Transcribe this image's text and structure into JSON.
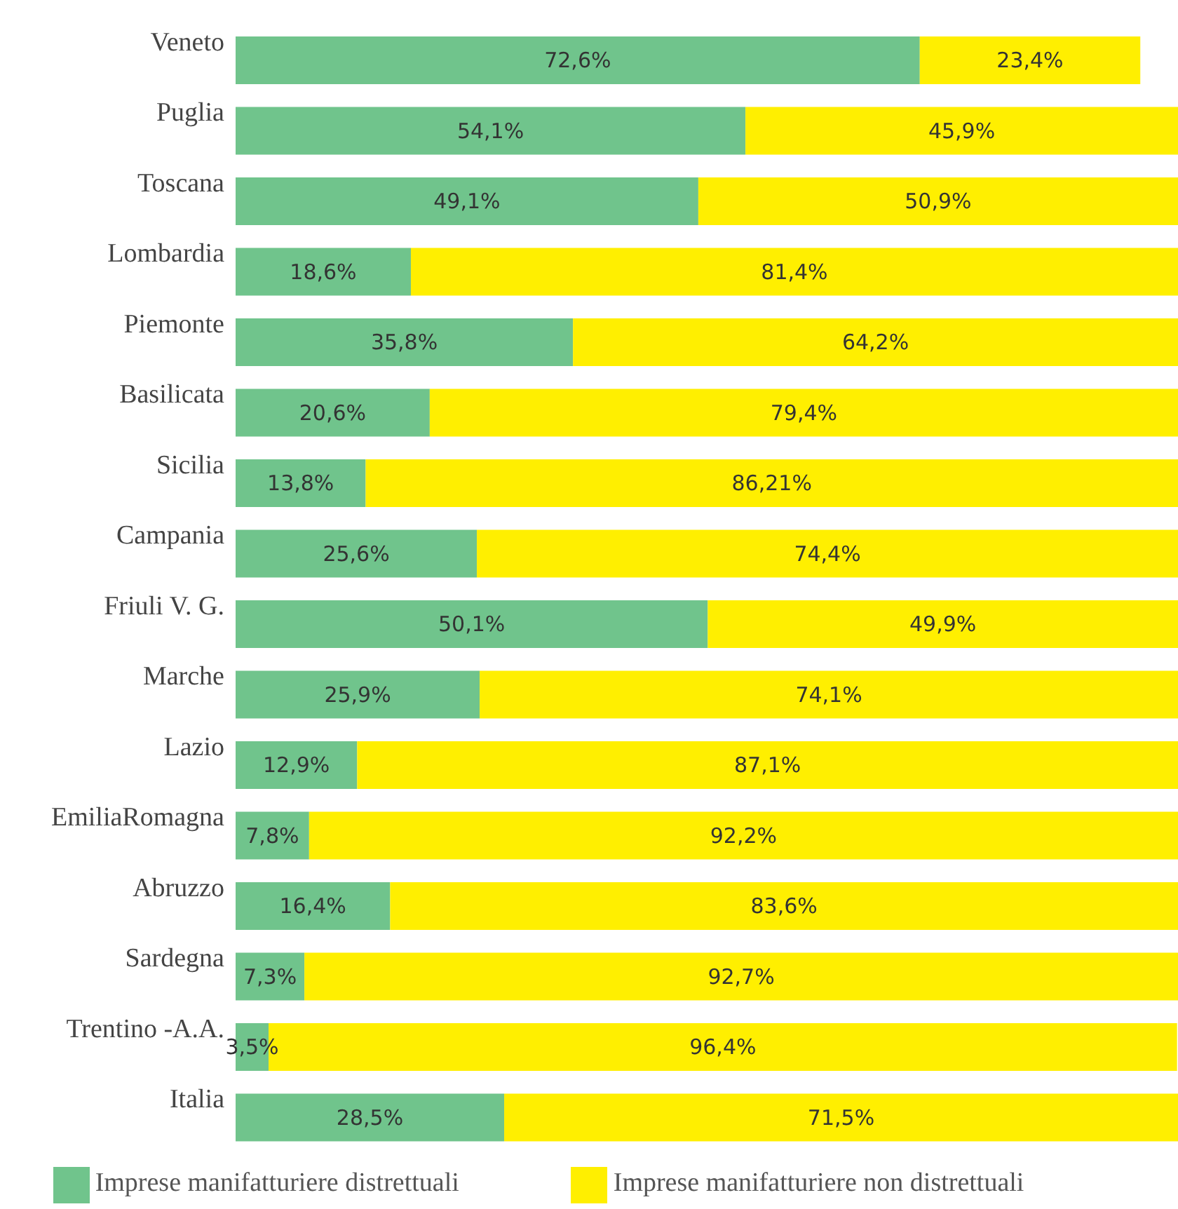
{
  "chart_data": {
    "type": "bar",
    "orientation": "horizontal",
    "stacked": true,
    "categories": [
      "Veneto",
      "Puglia",
      "Toscana",
      "Lombardia",
      "Piemonte",
      "Basilicata",
      "Sicilia",
      "Campania",
      "Friuli V. G.",
      "Marche",
      "Lazio",
      "EmiliaRomagna",
      "Abruzzo",
      "Sardegna",
      "Trentino -A.A.",
      "Italia"
    ],
    "xlim": [
      0,
      100
    ],
    "tick_labels": "y",
    "legend": "bottom",
    "grid": false,
    "series": [
      {
        "name": "Imprese manifatturiere distrettuali",
        "color": "#70c48c",
        "values": [
          72.6,
          54.1,
          49.1,
          18.6,
          35.8,
          20.6,
          13.8,
          25.6,
          50.1,
          25.9,
          12.9,
          7.8,
          16.4,
          7.3,
          3.5,
          28.5
        ],
        "value_labels": [
          "72,6%",
          "54,1%",
          "49,1%",
          "18,6%",
          "35,8%",
          "20,6%",
          "13,8%",
          "25,6%",
          "50,1%",
          "25,9%",
          "12,9%",
          "7,8%",
          "16,4%",
          "7,3%",
          "3,5%",
          "28,5%"
        ]
      },
      {
        "name": "Imprese manifatturiere non distrettuali",
        "color": "#ffef00",
        "values": [
          23.4,
          45.9,
          50.9,
          81.4,
          64.2,
          79.4,
          86.21,
          74.4,
          49.9,
          74.1,
          87.1,
          92.2,
          83.6,
          92.7,
          96.4,
          71.5
        ],
        "value_labels": [
          "23,4%",
          "45,9%",
          "50,9%",
          "81,4%",
          "64,2%",
          "79,4%",
          "86,21%",
          "74,4%",
          "49,9%",
          "74,1%",
          "87,1%",
          "92,2%",
          "83,6%",
          "92,7%",
          "96,4%",
          "71,5%"
        ]
      }
    ]
  }
}
